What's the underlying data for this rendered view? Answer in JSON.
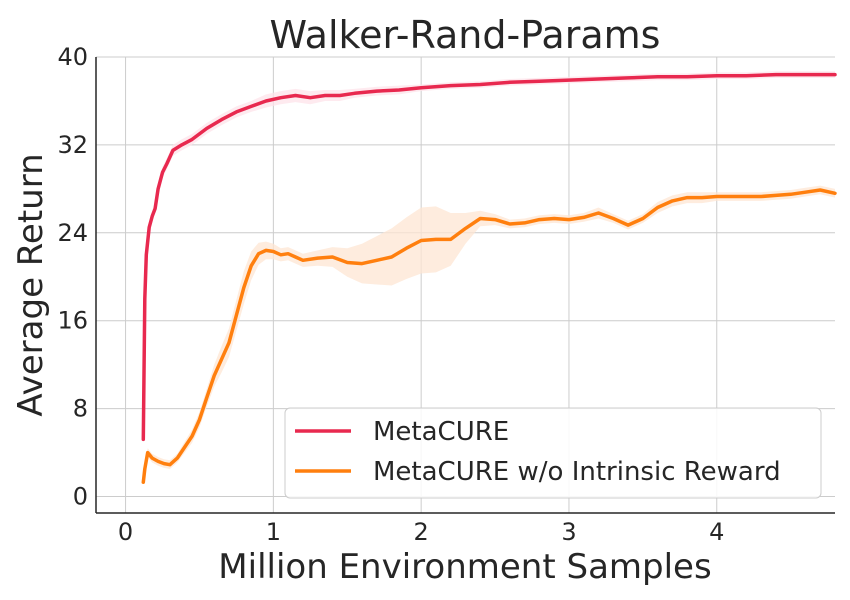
{
  "chart_data": {
    "type": "line",
    "title": "Walker-Rand-Params",
    "xlabel": "Million Environment Samples",
    "ylabel": "Average Return",
    "xlim": [
      -0.2,
      4.8
    ],
    "ylim": [
      -1.5,
      40
    ],
    "xticks": [
      0,
      1,
      2,
      3,
      4
    ],
    "yticks": [
      0,
      8,
      16,
      24,
      32,
      40
    ],
    "grid": true,
    "legend_position": "lower-right",
    "series": [
      {
        "name": "MetaCURE",
        "color": "#e8294f",
        "band_color": "#fde3ea",
        "x": [
          0.12,
          0.13,
          0.14,
          0.16,
          0.18,
          0.2,
          0.22,
          0.25,
          0.28,
          0.32,
          0.38,
          0.45,
          0.55,
          0.65,
          0.75,
          0.85,
          0.95,
          1.05,
          1.15,
          1.25,
          1.35,
          1.45,
          1.55,
          1.7,
          1.85,
          2.0,
          2.2,
          2.4,
          2.6,
          2.8,
          3.0,
          3.2,
          3.4,
          3.6,
          3.8,
          4.0,
          4.2,
          4.4,
          4.6,
          4.8
        ],
        "y": [
          5.2,
          18.0,
          22.0,
          24.5,
          25.5,
          26.2,
          28.0,
          29.5,
          30.3,
          31.5,
          32.0,
          32.5,
          33.5,
          34.3,
          35.0,
          35.5,
          36.0,
          36.3,
          36.5,
          36.3,
          36.5,
          36.5,
          36.7,
          36.9,
          37.0,
          37.2,
          37.4,
          37.5,
          37.7,
          37.8,
          37.9,
          38.0,
          38.1,
          38.2,
          38.2,
          38.3,
          38.3,
          38.4,
          38.4,
          38.4
        ],
        "spread": [
          0,
          0.3,
          0.3,
          0.3,
          0.3,
          0.3,
          0.4,
          0.5,
          0.5,
          0.5,
          0.5,
          0.5,
          0.5,
          0.5,
          0.5,
          0.5,
          0.6,
          0.6,
          0.6,
          0.6,
          0.5,
          0.5,
          0.4,
          0.4,
          0.4,
          0.3,
          0.3,
          0.3,
          0.3,
          0.3,
          0.3,
          0.3,
          0.3,
          0.3,
          0.3,
          0.3,
          0.3,
          0.3,
          0.3,
          0.3
        ]
      },
      {
        "name": "MetaCURE w/o Intrinsic Reward",
        "color": "#ff7f0e",
        "band_color": "#fde5d3",
        "x": [
          0.12,
          0.13,
          0.15,
          0.18,
          0.22,
          0.26,
          0.3,
          0.35,
          0.4,
          0.45,
          0.5,
          0.55,
          0.6,
          0.65,
          0.7,
          0.75,
          0.8,
          0.85,
          0.9,
          0.95,
          1.0,
          1.05,
          1.1,
          1.15,
          1.2,
          1.3,
          1.4,
          1.5,
          1.6,
          1.7,
          1.8,
          1.9,
          2.0,
          2.1,
          2.2,
          2.3,
          2.4,
          2.5,
          2.6,
          2.7,
          2.8,
          2.9,
          3.0,
          3.1,
          3.2,
          3.3,
          3.4,
          3.5,
          3.6,
          3.7,
          3.8,
          3.9,
          4.0,
          4.1,
          4.2,
          4.3,
          4.4,
          4.5,
          4.6,
          4.7,
          4.8
        ],
        "y": [
          1.3,
          2.5,
          4.0,
          3.5,
          3.2,
          3.0,
          2.9,
          3.5,
          4.5,
          5.5,
          7.0,
          9.0,
          11.0,
          12.5,
          14.0,
          16.5,
          19.0,
          21.0,
          22.1,
          22.4,
          22.3,
          22.0,
          22.1,
          21.8,
          21.5,
          21.7,
          21.8,
          21.3,
          21.2,
          21.5,
          21.8,
          22.6,
          23.3,
          23.4,
          23.4,
          24.4,
          25.3,
          25.2,
          24.8,
          24.9,
          25.2,
          25.3,
          25.2,
          25.4,
          25.8,
          25.3,
          24.7,
          25.3,
          26.3,
          26.9,
          27.2,
          27.2,
          27.3,
          27.3,
          27.3,
          27.3,
          27.4,
          27.5,
          27.7,
          27.9,
          27.6
        ],
        "spread": [
          0,
          0.3,
          0.4,
          0.4,
          0.4,
          0.4,
          0.4,
          0.4,
          0.5,
          0.6,
          0.7,
          0.8,
          1.0,
          1.2,
          1.3,
          1.4,
          1.5,
          1.3,
          1.0,
          0.8,
          0.7,
          0.6,
          0.6,
          0.6,
          0.6,
          0.7,
          0.9,
          1.3,
          1.8,
          2.2,
          2.6,
          2.8,
          3.0,
          3.0,
          2.4,
          1.4,
          0.7,
          0.5,
          0.4,
          0.4,
          0.4,
          0.4,
          0.4,
          0.4,
          0.5,
          0.4,
          0.4,
          0.4,
          0.5,
          0.5,
          0.5,
          0.5,
          0.4,
          0.4,
          0.4,
          0.4,
          0.4,
          0.4,
          0.4,
          0.4,
          0.4
        ]
      }
    ]
  }
}
